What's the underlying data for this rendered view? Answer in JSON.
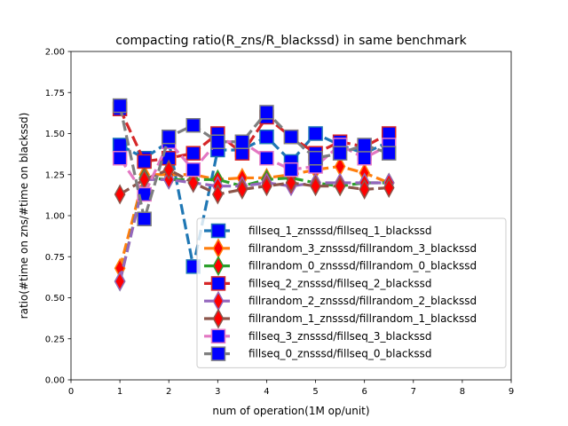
{
  "chart_data": {
    "type": "line",
    "title": "compacting ratio(R_zns/R_blackssd) in same benchmark",
    "xlabel": "num of operation(1M op/unit)",
    "ylabel": "ratio(#time on zns/#time on blackssd)",
    "xlim": [
      0,
      9
    ],
    "ylim": [
      0,
      2
    ],
    "xticks": [
      0,
      1,
      2,
      3,
      4,
      5,
      6,
      7,
      8,
      9
    ],
    "xtick_labels": [
      "0",
      "1",
      "2",
      "3",
      "4",
      "5",
      "6",
      "7",
      "8",
      "9"
    ],
    "yticks": [
      0,
      0.25,
      0.5,
      0.75,
      1.0,
      1.25,
      1.5,
      1.75,
      2.0
    ],
    "ytick_labels": [
      "0.00",
      "0.25",
      "0.50",
      "0.75",
      "1.00",
      "1.25",
      "1.50",
      "1.75",
      "2.00"
    ],
    "grid": false,
    "legend_position": "lower-right",
    "x": [
      1,
      1.5,
      2,
      2.5,
      3,
      3.5,
      4,
      4.5,
      5,
      5.5,
      6,
      6.5
    ],
    "series": [
      {
        "name": "fillseq_1_znsssd/fillseq_1_blackssd",
        "line_color": "#1f77b4",
        "marker": "square",
        "marker_face": "#0000ff",
        "values": [
          1.43,
          1.35,
          1.45,
          0.69,
          1.4,
          1.4,
          1.48,
          1.33,
          1.5,
          1.43,
          1.38,
          1.45
        ]
      },
      {
        "name": "fillrandom_3_znsssd/fillrandom_3_blackssd",
        "line_color": "#ff7f0e",
        "marker": "diamond",
        "marker_face": "#ff0000",
        "values": [
          0.68,
          1.25,
          1.25,
          1.25,
          1.22,
          1.23,
          1.23,
          1.25,
          1.28,
          1.3,
          1.26,
          1.2
        ]
      },
      {
        "name": "fillrandom_0_znsssd/fillrandom_0_blackssd",
        "line_color": "#2ca02c",
        "marker": "diamond",
        "marker_face": "#ff0000",
        "values": [
          0.6,
          1.23,
          1.22,
          1.22,
          1.22,
          1.18,
          1.22,
          1.23,
          1.2,
          1.18,
          1.2,
          1.2
        ]
      },
      {
        "name": "fillseq_2_znsssd/fillseq_2_blackssd",
        "line_color": "#d62728",
        "marker": "square",
        "marker_face": "#0000ff",
        "values": [
          1.65,
          1.33,
          1.35,
          1.38,
          1.5,
          1.38,
          1.6,
          1.48,
          1.38,
          1.45,
          1.42,
          1.5
        ]
      },
      {
        "name": "fillrandom_2_znsssd/fillrandom_2_blackssd",
        "line_color": "#9467bd",
        "marker": "diamond",
        "marker_face": "#ff0000",
        "values": [
          0.6,
          1.22,
          1.22,
          1.2,
          1.18,
          1.18,
          1.2,
          1.18,
          1.2,
          1.2,
          1.2,
          1.2
        ]
      },
      {
        "name": "fillrandom_1_znsssd/fillrandom_1_blackssd",
        "line_color": "#8c564b",
        "marker": "diamond",
        "marker_face": "#ff0000",
        "values": [
          1.13,
          1.22,
          1.28,
          1.2,
          1.13,
          1.16,
          1.18,
          1.2,
          1.18,
          1.18,
          1.16,
          1.17
        ]
      },
      {
        "name": "fillseq_3_znsssd/fillseq_3_blackssd",
        "line_color": "#e377c2",
        "marker": "square",
        "marker_face": "#0000ff",
        "values": [
          1.35,
          1.13,
          1.45,
          1.28,
          1.45,
          1.45,
          1.35,
          1.28,
          1.3,
          1.43,
          1.35,
          1.43
        ]
      },
      {
        "name": "fillseq_0_znsssd/fillseq_0_blackssd",
        "line_color": "#7f7f7f",
        "marker": "square",
        "marker_face": "#0000ff",
        "values": [
          1.67,
          0.98,
          1.48,
          1.55,
          1.45,
          1.45,
          1.63,
          1.48,
          1.35,
          1.38,
          1.43,
          1.38
        ]
      }
    ]
  }
}
